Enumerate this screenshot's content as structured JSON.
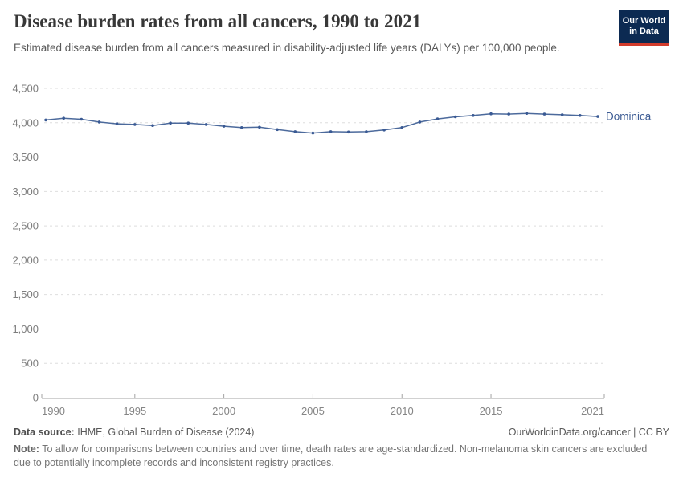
{
  "header": {
    "title": "Disease burden rates from all cancers, 1990 to 2021",
    "subtitle": "Estimated disease burden from all cancers measured in disability-adjusted life years (DALYs) per 100,000 people.",
    "logo": {
      "line1": "Our World",
      "line2": "in Data",
      "bg_color": "#0c2a52",
      "bar_color": "#d23b2c"
    }
  },
  "chart_data": {
    "type": "line",
    "title": "Disease burden rates from all cancers, 1990 to 2021",
    "xlim": [
      1990,
      2021
    ],
    "ylim": [
      0,
      4500
    ],
    "grid": "horizontal-dashed",
    "legend": "end-of-line-label",
    "x": [
      1990,
      1991,
      1992,
      1993,
      1994,
      1995,
      1996,
      1997,
      1998,
      1999,
      2000,
      2001,
      2002,
      2003,
      2004,
      2005,
      2006,
      2007,
      2008,
      2009,
      2010,
      2011,
      2012,
      2013,
      2014,
      2015,
      2016,
      2017,
      2018,
      2019,
      2020,
      2021
    ],
    "series": [
      {
        "name": "Dominica",
        "color": "#4c6a9c",
        "marker_color": "#3a5a94",
        "label_color": "#3d5c94",
        "values": [
          4040,
          4065,
          4050,
          4010,
          3985,
          3975,
          3960,
          3995,
          3995,
          3975,
          3950,
          3930,
          3935,
          3900,
          3870,
          3850,
          3870,
          3865,
          3870,
          3895,
          3930,
          4010,
          4055,
          4085,
          4105,
          4130,
          4125,
          4135,
          4125,
          4115,
          4105,
          4090
        ]
      }
    ],
    "x_axis": {
      "ticks": [
        {
          "value": 1990,
          "label": "1990"
        },
        {
          "value": 1995,
          "label": "1995"
        },
        {
          "value": 2000,
          "label": "2000"
        },
        {
          "value": 2005,
          "label": "2005"
        },
        {
          "value": 2010,
          "label": "2010"
        },
        {
          "value": 2015,
          "label": "2015"
        },
        {
          "value": 2021,
          "label": "2021"
        }
      ]
    },
    "y_axis": {
      "ticks": [
        {
          "value": 0,
          "label": "0"
        },
        {
          "value": 500,
          "label": "500"
        },
        {
          "value": 1000,
          "label": "1,000"
        },
        {
          "value": 1500,
          "label": "1,500"
        },
        {
          "value": 2000,
          "label": "2,000"
        },
        {
          "value": 2500,
          "label": "2,500"
        },
        {
          "value": 3000,
          "label": "3,000"
        },
        {
          "value": 3500,
          "label": "3,500"
        },
        {
          "value": 4000,
          "label": "4,000"
        },
        {
          "value": 4500,
          "label": "4,500"
        }
      ]
    }
  },
  "footer": {
    "datasource_label": "Data source:",
    "datasource_value": "IHME, Global Burden of Disease (2024)",
    "rights": "OurWorldinData.org/cancer | CC BY",
    "note_label": "Note:",
    "note_text": "To allow for comparisons between countries and over time, death rates are age-standardized. Non-melanoma skin cancers are excluded due to potentially incomplete records and inconsistent registry practices."
  }
}
